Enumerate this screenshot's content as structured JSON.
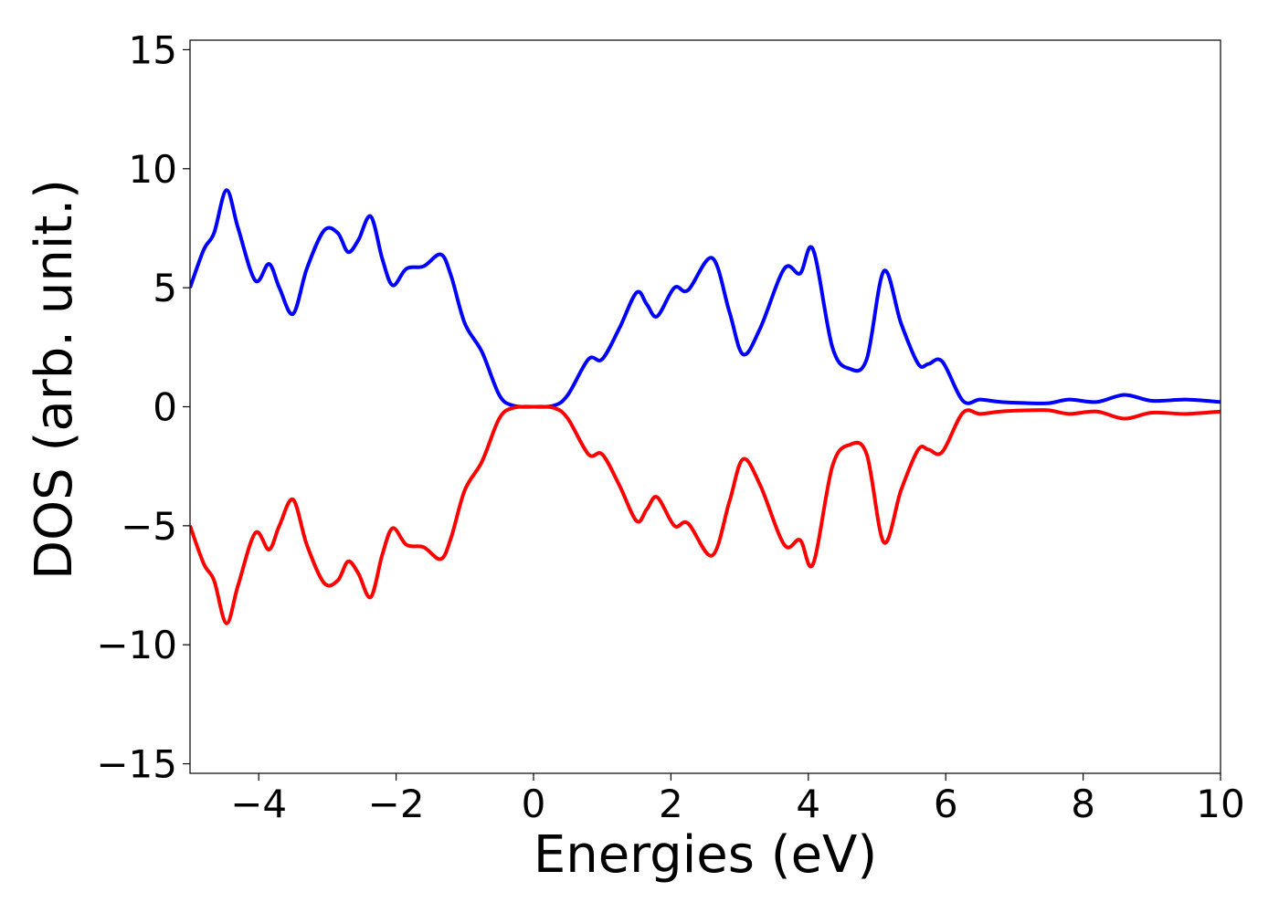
{
  "chart_data": {
    "type": "line",
    "title": "",
    "xlabel": "Energies (eV)",
    "ylabel": "DOS (arb. unit.)",
    "xlim": [
      -5,
      10
    ],
    "ylim": [
      -15.4,
      15.4
    ],
    "xticks": [
      -4,
      -2,
      0,
      2,
      4,
      6,
      8,
      10
    ],
    "xtick_labels": [
      "−4",
      "−2",
      "0",
      "2",
      "4",
      "6",
      "8",
      "10"
    ],
    "yticks": [
      -15,
      -10,
      -5,
      0,
      5,
      10,
      15
    ],
    "ytick_labels": [
      "−15",
      "−10",
      "−5",
      "0",
      "5",
      "10",
      "15"
    ],
    "grid": false,
    "legend": "none",
    "series": [
      {
        "color": "#0000ff",
        "x": [
          -5.0,
          -4.8,
          -4.65,
          -4.47,
          -4.3,
          -4.05,
          -3.85,
          -3.7,
          -3.5,
          -3.3,
          -3.05,
          -2.85,
          -2.7,
          -2.55,
          -2.37,
          -2.2,
          -2.05,
          -1.85,
          -1.6,
          -1.35,
          -1.2,
          -1.0,
          -0.75,
          -0.5,
          -0.3,
          0.0,
          0.3,
          0.5,
          0.8,
          1.0,
          1.25,
          1.5,
          1.65,
          1.8,
          2.05,
          2.25,
          2.6,
          2.85,
          3.05,
          3.3,
          3.65,
          3.88,
          4.07,
          4.35,
          4.6,
          4.85,
          5.1,
          5.35,
          5.6,
          5.75,
          5.95,
          6.25,
          6.5,
          6.8,
          7.2,
          7.5,
          7.8,
          8.2,
          8.6,
          9.0,
          9.5,
          10.0
        ],
        "values": [
          5.0,
          6.6,
          7.3,
          9.1,
          7.5,
          5.3,
          6.0,
          5.0,
          3.9,
          5.8,
          7.4,
          7.3,
          6.5,
          7.0,
          8.0,
          6.2,
          5.1,
          5.8,
          5.9,
          6.4,
          5.5,
          3.5,
          2.3,
          0.5,
          0.05,
          0.0,
          0.05,
          0.5,
          2.0,
          2.0,
          3.3,
          4.8,
          4.3,
          3.8,
          5.0,
          4.9,
          6.25,
          4.0,
          2.2,
          3.3,
          5.8,
          5.6,
          6.6,
          2.5,
          1.6,
          2.0,
          5.7,
          3.5,
          1.8,
          1.8,
          1.9,
          0.25,
          0.3,
          0.2,
          0.15,
          0.15,
          0.3,
          0.2,
          0.5,
          0.25,
          0.3,
          0.2
        ]
      },
      {
        "color": "#ff0000",
        "x": [
          -5.0,
          -4.8,
          -4.65,
          -4.47,
          -4.3,
          -4.05,
          -3.85,
          -3.7,
          -3.5,
          -3.3,
          -3.05,
          -2.85,
          -2.7,
          -2.55,
          -2.37,
          -2.2,
          -2.05,
          -1.85,
          -1.6,
          -1.35,
          -1.2,
          -1.0,
          -0.75,
          -0.5,
          -0.3,
          0.0,
          0.3,
          0.5,
          0.8,
          1.0,
          1.25,
          1.5,
          1.65,
          1.8,
          2.05,
          2.25,
          2.6,
          2.85,
          3.05,
          3.3,
          3.65,
          3.88,
          4.07,
          4.35,
          4.6,
          4.85,
          5.1,
          5.35,
          5.6,
          5.75,
          5.95,
          6.25,
          6.5,
          6.8,
          7.2,
          7.5,
          7.8,
          8.2,
          8.6,
          9.0,
          9.5,
          10.0
        ],
        "values": [
          -5.0,
          -6.6,
          -7.3,
          -9.1,
          -7.5,
          -5.3,
          -6.0,
          -5.0,
          -3.9,
          -5.8,
          -7.4,
          -7.3,
          -6.5,
          -7.0,
          -8.0,
          -6.2,
          -5.1,
          -5.8,
          -5.9,
          -6.4,
          -5.5,
          -3.5,
          -2.3,
          -0.5,
          -0.05,
          0.0,
          -0.05,
          -0.5,
          -2.0,
          -2.0,
          -3.3,
          -4.8,
          -4.3,
          -3.8,
          -5.0,
          -4.9,
          -6.25,
          -4.0,
          -2.2,
          -3.3,
          -5.8,
          -5.6,
          -6.6,
          -2.5,
          -1.6,
          -2.0,
          -5.7,
          -3.5,
          -1.8,
          -1.8,
          -1.9,
          -0.25,
          -0.3,
          -0.2,
          -0.15,
          -0.15,
          -0.3,
          -0.2,
          -0.5,
          -0.25,
          -0.3,
          -0.2
        ]
      }
    ]
  }
}
